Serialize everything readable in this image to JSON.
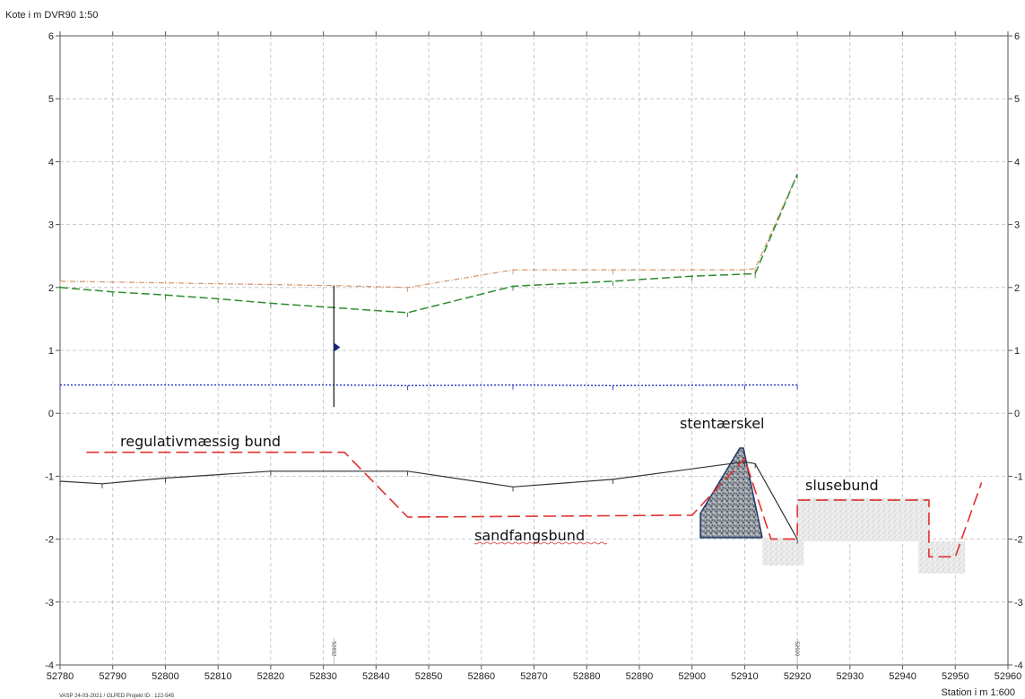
{
  "chart_data": {
    "type": "line",
    "ylabel": "Kote i m DVR90 1:50",
    "xlabel": "Station i m  1:600",
    "xlim": [
      52780,
      52960
    ],
    "ylim": [
      -4,
      6
    ],
    "x_ticks": [
      "52780",
      "52790",
      "52800",
      "52810",
      "52820",
      "52830",
      "52840",
      "52850",
      "52860",
      "52870",
      "52880",
      "52890",
      "52900",
      "52910",
      "52920",
      "52930",
      "52940",
      "52950",
      "52960"
    ],
    "y_ticks": [
      "6",
      "5",
      "4",
      "3",
      "2",
      "1",
      "0",
      "-1",
      "-2",
      "-3",
      "-4"
    ],
    "grid": true,
    "footer": "VASP          24-03-2021 / OLPED    Projekt ID : 122-545",
    "station_markers": [
      {
        "x": 52832,
        "label": "52832"
      },
      {
        "x": 52920,
        "label": "52920"
      }
    ],
    "series": [
      {
        "color": "#d2956a",
        "style": "dash-dot",
        "points": [
          [
            52780,
            2.1
          ],
          [
            52832,
            2.03
          ],
          [
            52846,
            2.0
          ],
          [
            52866,
            2.28
          ],
          [
            52885,
            2.28
          ],
          [
            52910,
            2.28
          ],
          [
            52912,
            2.3
          ],
          [
            52920,
            3.8
          ]
        ]
      },
      {
        "color": "#2e8b2e",
        "style": "dashed",
        "points": [
          [
            52780,
            2.0
          ],
          [
            52790,
            1.93
          ],
          [
            52800,
            1.88
          ],
          [
            52810,
            1.82
          ],
          [
            52820,
            1.75
          ],
          [
            52832,
            1.68
          ],
          [
            52846,
            1.6
          ],
          [
            52866,
            2.02
          ],
          [
            52885,
            2.1
          ],
          [
            52900,
            2.18
          ],
          [
            52912,
            2.22
          ],
          [
            52920,
            3.8
          ]
        ]
      },
      {
        "color": "#2432c8",
        "style": "dotted",
        "points": [
          [
            52780,
            0.45
          ],
          [
            52832,
            0.45
          ],
          [
            52846,
            0.44
          ],
          [
            52866,
            0.45
          ],
          [
            52885,
            0.44
          ],
          [
            52910,
            0.45
          ],
          [
            52920,
            0.45
          ]
        ]
      },
      {
        "color": "#333333",
        "style": "solid",
        "points": [
          [
            52780,
            -1.08
          ],
          [
            52788,
            -1.12
          ],
          [
            52800,
            -1.03
          ],
          [
            52820,
            -0.92
          ],
          [
            52846,
            -0.92
          ],
          [
            52866,
            -1.17
          ],
          [
            52885,
            -1.05
          ],
          [
            52910,
            -0.77
          ],
          [
            52912,
            -0.8
          ],
          [
            52920,
            -2.0
          ]
        ]
      },
      {
        "color": "#e03030",
        "style": "long-dash",
        "points": [
          [
            52785,
            -0.62
          ],
          [
            52834,
            -0.62
          ],
          [
            52846,
            -1.65
          ],
          [
            52900,
            -1.62
          ],
          [
            52910,
            -0.72
          ],
          [
            52915,
            -2.0
          ],
          [
            52920,
            -2.0
          ],
          [
            52920,
            -1.38
          ],
          [
            52945,
            -1.38
          ],
          [
            52945,
            -2.28
          ],
          [
            52950,
            -2.28
          ],
          [
            52955,
            -1.1
          ]
        ]
      }
    ],
    "annotations": [
      "regulativmæssig bund",
      "sandfangsbund",
      "stentærskel",
      "slusebund"
    ],
    "water_marker": {
      "x": 52832,
      "y": 1.05,
      "line_from": 0.1,
      "line_to": 2.03
    }
  }
}
